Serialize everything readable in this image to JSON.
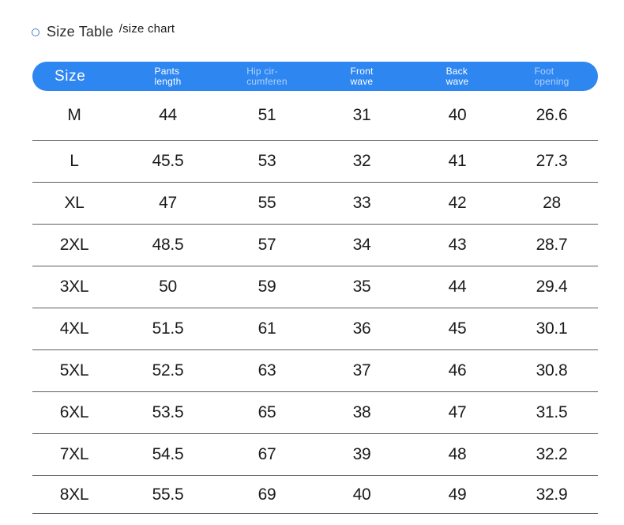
{
  "title": "Size Table",
  "subtitle": "/size chart",
  "colors": {
    "accent": "#2e86f1",
    "header_text": "#ffffff",
    "header_text_dim": "#aacbf4",
    "divider": "#5f5f5f",
    "body_text": "#1b1b1b",
    "bullet_ring": "#4a83c6"
  },
  "table": {
    "columns": [
      {
        "id": "size",
        "label": "Size",
        "dim": false
      },
      {
        "id": "pants-length",
        "label": "Pants\nlength",
        "dim": false
      },
      {
        "id": "hip-circumference",
        "label": "Hip cir-\ncumferen",
        "dim": true
      },
      {
        "id": "front-wave",
        "label": "Front\nwave",
        "dim": false
      },
      {
        "id": "back-wave",
        "label": "Back\nwave",
        "dim": false
      },
      {
        "id": "foot-opening",
        "label": "Foot\nopening",
        "dim": true
      }
    ],
    "rows": [
      {
        "size": "M",
        "values": [
          "44",
          "51",
          "31",
          "40",
          "26.6"
        ]
      },
      {
        "size": "L",
        "values": [
          "45.5",
          "53",
          "32",
          "41",
          "27.3"
        ]
      },
      {
        "size": "XL",
        "values": [
          "47",
          "55",
          "33",
          "42",
          "28"
        ]
      },
      {
        "size": "2XL",
        "values": [
          "48.5",
          "57",
          "34",
          "43",
          "28.7"
        ]
      },
      {
        "size": "3XL",
        "values": [
          "50",
          "59",
          "35",
          "44",
          "29.4"
        ]
      },
      {
        "size": "4XL",
        "values": [
          "51.5",
          "61",
          "36",
          "45",
          "30.1"
        ]
      },
      {
        "size": "5XL",
        "values": [
          "52.5",
          "63",
          "37",
          "46",
          "30.8"
        ]
      },
      {
        "size": "6XL",
        "values": [
          "53.5",
          "65",
          "38",
          "47",
          "31.5"
        ]
      },
      {
        "size": "7XL",
        "values": [
          "54.5",
          "67",
          "39",
          "48",
          "32.2"
        ]
      },
      {
        "size": "8XL",
        "values": [
          "55.5",
          "69",
          "40",
          "49",
          "32.9"
        ]
      }
    ]
  }
}
